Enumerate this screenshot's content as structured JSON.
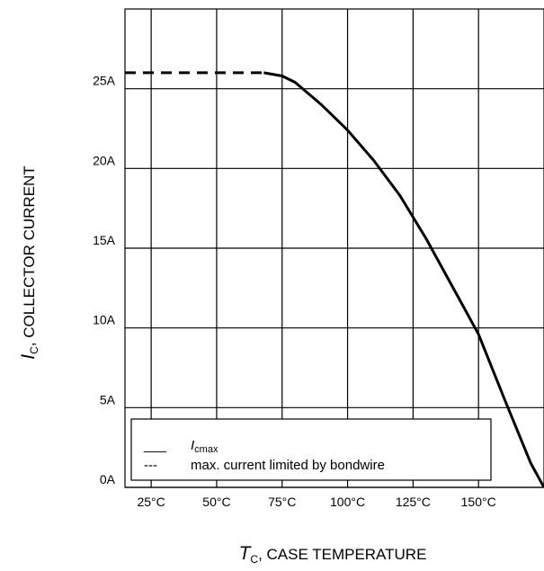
{
  "chart_data": {
    "type": "line",
    "xlabel": {
      "symbol": "T",
      "subscript": "C",
      "text": ", CASE TEMPERATURE"
    },
    "ylabel": {
      "symbol": "I",
      "subscript": "C",
      "text": ", COLLECTOR CURRENT"
    },
    "x_ticks": [
      "25°C",
      "50°C",
      "75°C",
      "100°C",
      "125°C",
      "150°C"
    ],
    "x_tick_values": [
      25,
      50,
      75,
      100,
      125,
      150
    ],
    "y_ticks": [
      "0A",
      "5A",
      "10A",
      "15A",
      "20A",
      "25A"
    ],
    "y_tick_values": [
      0,
      5,
      10,
      15,
      20,
      25
    ],
    "xlim": [
      15,
      175
    ],
    "ylim": [
      0,
      30
    ],
    "grid": true,
    "legend_position": "bottom-left",
    "series": [
      {
        "name": "max. current limited by bondwire",
        "legend_symbol": "---",
        "style": "dashed",
        "x": [
          15,
          68
        ],
        "y": [
          26,
          26
        ]
      },
      {
        "name": "Icmax",
        "legend_symbol": "___",
        "legend_name_main": "I",
        "legend_name_sub": "cmax",
        "style": "solid",
        "x": [
          68,
          75,
          80,
          90,
          100,
          110,
          120,
          130,
          140,
          150,
          160,
          170,
          175
        ],
        "y": [
          26,
          25.8,
          25.4,
          24,
          22.4,
          20.5,
          18.3,
          15.6,
          12.6,
          9.6,
          5.5,
          1.5,
          0
        ]
      }
    ]
  }
}
